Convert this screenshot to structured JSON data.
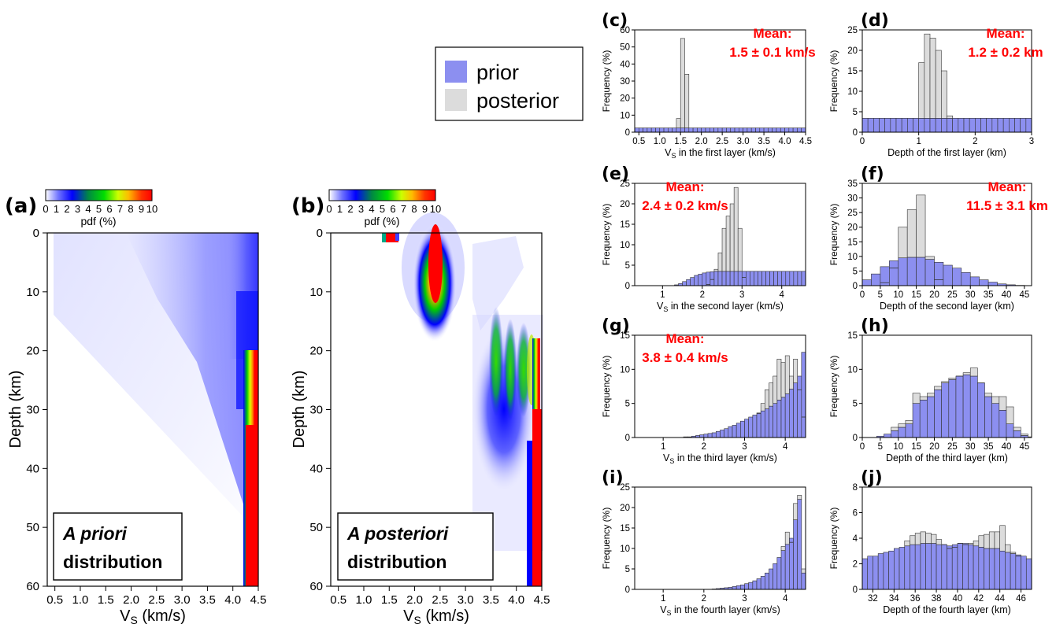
{
  "figure": {
    "legend": {
      "items": [
        {
          "label": "prior",
          "color": "#8c8ff0"
        },
        {
          "label": "posterior",
          "color": "#dcdcdc"
        }
      ]
    },
    "colors": {
      "prior": "#8c8ff0",
      "posterior": "#dcdcdc",
      "mean_text": "#ff0000"
    }
  },
  "chart_data": [
    {
      "panel": "(a)",
      "type": "heatmap",
      "inset_label_line1": "A priori",
      "inset_label_line2": "distribution",
      "xlabel_main": "V",
      "xlabel_sub": "S",
      "xlabel_rest": " (km/s)",
      "ylabel": "Depth (km)",
      "xlim": [
        0.35,
        4.5
      ],
      "ylim": [
        60,
        0
      ],
      "xticks": [
        "0.5",
        "1.0",
        "1.5",
        "2.0",
        "2.5",
        "3.0",
        "3.5",
        "4.0",
        "4.5"
      ],
      "xtick_values": [
        0.5,
        1.0,
        1.5,
        2.0,
        2.5,
        3.0,
        3.5,
        4.0,
        4.5
      ],
      "yticks": [
        "0",
        "10",
        "20",
        "30",
        "40",
        "50",
        "60"
      ],
      "ytick_values": [
        0,
        10,
        20,
        30,
        40,
        50,
        60
      ],
      "colorbar": {
        "label": "pdf (%)",
        "ticks": [
          "0",
          "1",
          "2",
          "3",
          "4",
          "5",
          "6",
          "7",
          "8",
          "9",
          "10"
        ]
      }
    },
    {
      "panel": "(b)",
      "type": "heatmap",
      "inset_label_line1": "A posteriori",
      "inset_label_line2": "distribution",
      "xlabel_main": "V",
      "xlabel_sub": "S",
      "xlabel_rest": " (km/s)",
      "ylabel": "Depth (km)",
      "xlim": [
        0.35,
        4.5
      ],
      "ylim": [
        60,
        0
      ],
      "xticks": [
        "0.5",
        "1.0",
        "1.5",
        "2.0",
        "2.5",
        "3.0",
        "3.5",
        "4.0",
        "4.5"
      ],
      "xtick_values": [
        0.5,
        1.0,
        1.5,
        2.0,
        2.5,
        3.0,
        3.5,
        4.0,
        4.5
      ],
      "yticks": [
        "0",
        "10",
        "20",
        "30",
        "40",
        "50",
        "60"
      ],
      "ytick_values": [
        0,
        10,
        20,
        30,
        40,
        50,
        60
      ],
      "colorbar": {
        "label": "pdf (%)",
        "ticks": [
          "0",
          "1",
          "2",
          "3",
          "4",
          "5",
          "6",
          "7",
          "8",
          "9",
          "10"
        ]
      }
    },
    {
      "panel": "(c)",
      "type": "bar",
      "xlabel_main": "V",
      "xlabel_sub": "S",
      "xlabel_rest": " in the first layer (km/s)",
      "ylabel": "Frequency (%)",
      "xlim": [
        0.4,
        4.5
      ],
      "ylim": [
        0,
        60
      ],
      "xticks": [
        "0.5",
        "1.0",
        "1.5",
        "2.0",
        "2.5",
        "3.0",
        "3.5",
        "4.0",
        "4.5"
      ],
      "xtick_values": [
        0.5,
        1.0,
        1.5,
        2.0,
        2.5,
        3.0,
        3.5,
        4.0,
        4.5
      ],
      "yticks": [
        "0",
        "10",
        "20",
        "30",
        "40",
        "50",
        "60"
      ],
      "ytick_values": [
        0,
        10,
        20,
        30,
        40,
        50,
        60
      ],
      "mean_title": "Mean:",
      "mean_value": "1.5 ± 0.1 km/s",
      "bin_start": 0.4,
      "bin_width": 0.1,
      "prior": [
        2.5,
        2.5,
        2.5,
        2.5,
        2.5,
        2.5,
        2.5,
        2.5,
        2.5,
        2.5,
        2.5,
        2.5,
        2.5,
        2.5,
        2.5,
        2.5,
        2.5,
        2.5,
        2.5,
        2.5,
        2.5,
        2.5,
        2.5,
        2.5,
        2.5,
        2.5,
        2.5,
        2.5,
        2.5,
        2.5,
        2.5,
        2.5,
        2.5,
        2.5,
        2.5,
        2.5,
        2.5,
        2.5,
        2.5,
        2.5,
        2.5
      ],
      "posterior": [
        0,
        0,
        0,
        0,
        0,
        0,
        0,
        0,
        0,
        0,
        8,
        55,
        34,
        0,
        0,
        0,
        0,
        0,
        0,
        0,
        0,
        0,
        0,
        0,
        0,
        0,
        0,
        0,
        0,
        0,
        0,
        0,
        0,
        0,
        0,
        0,
        0,
        0,
        0,
        0,
        0
      ]
    },
    {
      "panel": "(d)",
      "type": "bar",
      "xlabel_main": "Depth of the first layer (km)",
      "xlabel_sub": "",
      "xlabel_rest": "",
      "ylabel": "Frequency (%)",
      "xlim": [
        0,
        3
      ],
      "ylim": [
        0,
        25
      ],
      "xticks": [
        "0",
        "1",
        "2",
        "3"
      ],
      "xtick_values": [
        0,
        1,
        2,
        3
      ],
      "yticks": [
        "0",
        "5",
        "10",
        "15",
        "20",
        "25"
      ],
      "ytick_values": [
        0,
        5,
        10,
        15,
        20,
        25
      ],
      "mean_title": "Mean:",
      "mean_value": "1.2 ± 0.2 km",
      "bin_start": 0,
      "bin_width": 0.1,
      "prior": [
        3.4,
        3.4,
        3.4,
        3.4,
        3.4,
        3.4,
        3.4,
        3.4,
        3.4,
        3.4,
        3.4,
        3.4,
        3.4,
        3.4,
        3.4,
        3.4,
        3.4,
        3.4,
        3.4,
        3.4,
        3.4,
        3.4,
        3.4,
        3.4,
        3.4,
        3.4,
        3.4,
        3.4,
        3.4,
        3.4
      ],
      "posterior": [
        0,
        0,
        0,
        0,
        0,
        0,
        0,
        0,
        0,
        0,
        17,
        24,
        23,
        20,
        15,
        4,
        0,
        0,
        0,
        0,
        0,
        0,
        0,
        0,
        0,
        0,
        0,
        0,
        0,
        0
      ]
    },
    {
      "panel": "(e)",
      "type": "bar",
      "xlabel_main": "V",
      "xlabel_sub": "S",
      "xlabel_rest": " in the second layer (km/s)",
      "ylabel": "Frequency (%)",
      "xlim": [
        0.3,
        4.6
      ],
      "ylim": [
        0,
        25
      ],
      "xticks": [
        "1",
        "2",
        "3",
        "4"
      ],
      "xtick_values": [
        1,
        2,
        3,
        4
      ],
      "yticks": [
        "0",
        "5",
        "10",
        "15",
        "20",
        "25"
      ],
      "ytick_values": [
        0,
        5,
        10,
        15,
        20,
        25
      ],
      "mean_title": "Mean:",
      "mean_value": "2.4 ± 0.2 km/s",
      "bin_start": 0.3,
      "bin_width": 0.1,
      "prior": [
        0,
        0,
        0,
        0,
        0,
        0,
        0,
        0,
        0,
        0,
        0.2,
        0.5,
        1,
        1.5,
        2,
        2.5,
        2.8,
        3.1,
        3.3,
        3.4,
        3.5,
        3.5,
        3.5,
        3.5,
        3.5,
        3.5,
        3.5,
        3.5,
        3.5,
        3.5,
        3.5,
        3.5,
        3.5,
        3.5,
        3.5,
        3.5,
        3.5,
        3.5,
        3.5,
        3.5,
        3.5,
        3.5,
        3.5
      ],
      "posterior": [
        0,
        0,
        0,
        0,
        0,
        0,
        0,
        0,
        0,
        0,
        0,
        0,
        0,
        0,
        0,
        0,
        0,
        0,
        0.3,
        1.5,
        4,
        8,
        14,
        17,
        20,
        24,
        14,
        2,
        0,
        0,
        0,
        0,
        0,
        0,
        0,
        0,
        0,
        0,
        0,
        0,
        0,
        0,
        0
      ]
    },
    {
      "panel": "(f)",
      "type": "bar",
      "xlabel_main": "Depth of the second layer (km)",
      "xlabel_sub": "",
      "xlabel_rest": "",
      "ylabel": "Frequency (%)",
      "xlim": [
        0,
        47
      ],
      "ylim": [
        0,
        35
      ],
      "xticks": [
        "0",
        "5",
        "10",
        "15",
        "20",
        "25",
        "30",
        "35",
        "40",
        "45"
      ],
      "xtick_values": [
        0,
        5,
        10,
        15,
        20,
        25,
        30,
        35,
        40,
        45
      ],
      "yticks": [
        "0",
        "5",
        "10",
        "15",
        "20",
        "25",
        "30",
        "35"
      ],
      "ytick_values": [
        0,
        5,
        10,
        15,
        20,
        25,
        30,
        35
      ],
      "mean_title": "Mean:",
      "mean_value": "11.5 ± 3.1 km",
      "bin_start": 0,
      "bin_width": 2.5,
      "prior": [
        2,
        4,
        6.5,
        8.5,
        9.5,
        9.7,
        9.7,
        9,
        8,
        7,
        6,
        4.5,
        3,
        2,
        1.2,
        0.6,
        0.3,
        0.1,
        0
      ],
      "posterior": [
        0,
        0,
        1,
        6,
        20,
        26,
        31,
        10,
        2,
        0,
        0,
        0,
        0,
        0,
        0,
        0,
        0,
        0,
        0
      ]
    },
    {
      "panel": "(g)",
      "type": "bar",
      "xlabel_main": "V",
      "xlabel_sub": "S",
      "xlabel_rest": " in the third layer (km/s)",
      "ylabel": "Frequency (%)",
      "xlim": [
        0.3,
        4.5
      ],
      "ylim": [
        0,
        15
      ],
      "xticks": [
        "1",
        "2",
        "3",
        "4"
      ],
      "xtick_values": [
        1,
        2,
        3,
        4
      ],
      "yticks": [
        "0",
        "5",
        "10",
        "15"
      ],
      "ytick_values": [
        0,
        5,
        10,
        15
      ],
      "mean_title": "Mean:",
      "mean_value": "3.8 ± 0.4 km/s",
      "bin_start": 0.3,
      "bin_width": 0.1,
      "prior": [
        0,
        0,
        0,
        0,
        0,
        0,
        0,
        0,
        0,
        0,
        0,
        0,
        0.1,
        0.1,
        0.2,
        0.3,
        0.4,
        0.5,
        0.6,
        0.7,
        0.9,
        1.1,
        1.3,
        1.6,
        1.8,
        2.1,
        2.4,
        2.7,
        3.0,
        3.3,
        3.6,
        3.9,
        4.2,
        4.6,
        5.0,
        5.5,
        5.9,
        6.4,
        7.1,
        8.0,
        9.0,
        12.5
      ],
      "posterior": [
        0,
        0,
        0,
        0,
        0,
        0,
        0,
        0,
        0,
        0,
        0,
        0,
        0,
        0,
        0,
        0,
        0,
        0,
        0,
        0,
        0,
        0,
        0,
        0,
        0,
        0,
        0,
        0,
        0,
        0,
        3.5,
        5,
        7,
        8,
        9,
        11.5,
        11,
        12,
        9,
        11.5,
        7,
        3
      ]
    },
    {
      "panel": "(h)",
      "type": "bar",
      "xlabel_main": "Depth of the third layer (km)",
      "xlabel_sub": "",
      "xlabel_rest": "",
      "ylabel": "Frequency (%)",
      "xlim": [
        0,
        47
      ],
      "ylim": [
        0,
        15
      ],
      "xticks": [
        "0",
        "5",
        "10",
        "15",
        "20",
        "25",
        "30",
        "35",
        "40",
        "45"
      ],
      "xtick_values": [
        0,
        5,
        10,
        15,
        20,
        25,
        30,
        35,
        40,
        45
      ],
      "yticks": [
        "0",
        "5",
        "10",
        "15"
      ],
      "ytick_values": [
        0,
        5,
        10,
        15
      ],
      "mean_title": "",
      "mean_value": "",
      "bin_start": 0,
      "bin_width": 2,
      "prior": [
        0,
        0,
        0.2,
        0.5,
        1,
        1.5,
        2,
        5,
        5.5,
        6,
        7,
        8,
        8.5,
        9,
        9.2,
        9,
        8,
        6,
        5,
        4,
        2,
        1,
        0.3,
        0.1
      ],
      "posterior": [
        0,
        0,
        0,
        0,
        1.5,
        2,
        2.5,
        6.5,
        6,
        6.5,
        7.5,
        8.2,
        8.7,
        9,
        9.5,
        10.2,
        8,
        6.5,
        6,
        6,
        4.5,
        1.5,
        0.5,
        0
      ]
    },
    {
      "panel": "(i)",
      "type": "bar",
      "xlabel_main": "V",
      "xlabel_sub": "S",
      "xlabel_rest": " in the fourth layer (km/s)",
      "ylabel": "Frequency (%)",
      "xlim": [
        0.3,
        4.5
      ],
      "ylim": [
        0,
        25
      ],
      "xticks": [
        "1",
        "2",
        "3",
        "4"
      ],
      "xtick_values": [
        1,
        2,
        3,
        4
      ],
      "yticks": [
        "0",
        "5",
        "10",
        "15",
        "20",
        "25"
      ],
      "ytick_values": [
        0,
        5,
        10,
        15,
        20,
        25
      ],
      "mean_title": "",
      "mean_value": "",
      "bin_start": 0.3,
      "bin_width": 0.1,
      "prior": [
        0,
        0,
        0,
        0,
        0,
        0,
        0,
        0,
        0,
        0,
        0,
        0,
        0,
        0,
        0,
        0,
        0,
        0,
        0,
        0.1,
        0.2,
        0.3,
        0.4,
        0.5,
        0.7,
        0.9,
        1.1,
        1.4,
        1.7,
        2.1,
        2.6,
        3.2,
        4.0,
        5.0,
        6.3,
        7.8,
        9.5,
        11,
        12.5,
        17,
        22,
        4
      ],
      "posterior": [
        0,
        0,
        0,
        0,
        0,
        0,
        0,
        0,
        0,
        0,
        0,
        0,
        0,
        0,
        0,
        0,
        0,
        0,
        0,
        0,
        0,
        0,
        0,
        0,
        0,
        0,
        0,
        0,
        0,
        0,
        0,
        0,
        0,
        0,
        0,
        0,
        10.5,
        14,
        11.5,
        21,
        23,
        5
      ]
    },
    {
      "panel": "(j)",
      "type": "bar",
      "xlabel_main": "Depth of the fourth layer (km)",
      "xlabel_sub": "",
      "xlabel_rest": "",
      "ylabel": "Frequency (%)",
      "xlim": [
        31,
        47
      ],
      "ylim": [
        0,
        8
      ],
      "xticks": [
        "32",
        "34",
        "36",
        "38",
        "40",
        "42",
        "44",
        "46"
      ],
      "xtick_values": [
        32,
        34,
        36,
        38,
        40,
        42,
        44,
        46
      ],
      "yticks": [
        "0",
        "2",
        "4",
        "6",
        "8"
      ],
      "ytick_values": [
        0,
        2,
        4,
        6,
        8
      ],
      "mean_title": "",
      "mean_value": "",
      "bin_start": 31,
      "bin_width": 0.5,
      "prior": [
        2.4,
        2.6,
        2.6,
        2.8,
        2.9,
        3.0,
        3.2,
        3.3,
        3.4,
        3.5,
        3.5,
        3.6,
        3.6,
        3.6,
        3.5,
        3.5,
        3.4,
        3.5,
        3.6,
        3.6,
        3.5,
        3.4,
        3.3,
        3.2,
        3.2,
        3.2,
        3.0,
        2.9,
        2.8,
        2.7,
        2.6,
        2.4
      ],
      "posterior": [
        0,
        0,
        0,
        0,
        0,
        0,
        0,
        0,
        3.8,
        4.2,
        4.4,
        4.5,
        4.4,
        4.3,
        3.9,
        3.5,
        3.2,
        3.3,
        3.6,
        3.5,
        3.6,
        3.8,
        4.2,
        4.3,
        4.5,
        4.5,
        5.0,
        3.5,
        2.9,
        2.6,
        0,
        0
      ]
    }
  ]
}
